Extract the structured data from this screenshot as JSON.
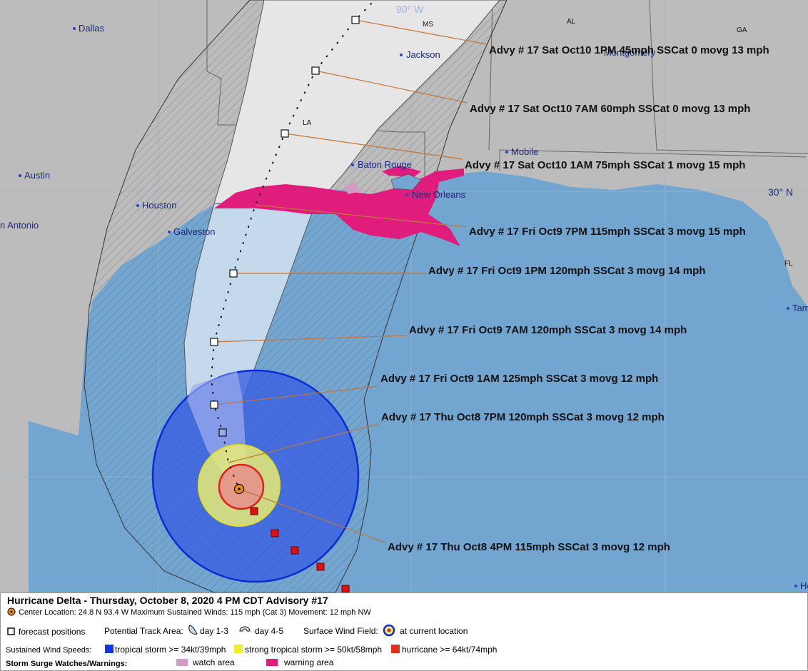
{
  "map": {
    "grid_labels": [
      "90° W",
      "30° N"
    ],
    "states": [
      "MS",
      "AL",
      "GA",
      "LA",
      "FL"
    ],
    "cities": [
      "Dallas",
      "Jackson",
      "Montgomery",
      "Mobile",
      "Baton Rouge",
      "New Orleans",
      "Austin",
      "Houston",
      "Galveston",
      "n Antonio",
      "Tam",
      "He"
    ]
  },
  "advisories": [
    "Advy # 17 Sat Oct10 1PM  45mph SSCat 0 movg 13 mph",
    "Advy # 17 Sat Oct10 7AM  60mph SSCat 0 movg 13 mph",
    "Advy # 17 Sat Oct10 1AM  75mph SSCat 1 movg 15 mph",
    "Advy # 17 Fri Oct9 7PM  115mph SSCat 3 movg 15 mph",
    "Advy # 17 Fri Oct9 1PM  120mph SSCat 3 movg 14 mph",
    "Advy # 17 Fri Oct9 7AM  120mph SSCat 3 movg 14 mph",
    "Advy # 17 Fri Oct9 1AM  125mph SSCat 3 movg 12 mph",
    "Advy # 17 Thu Oct8 7PM  120mph SSCat 3 movg 12 mph",
    "Advy # 17 Thu Oct8 4PM  115mph SSCat 3 movg 12 mph"
  ],
  "legend": {
    "title": "Hurricane Delta  -  Thursday, October 8, 2020  4 PM CDT   Advisory #17",
    "center": "Center Location: 24.8 N  93.4 W   Maximum Sustained Winds: 115 mph (Cat 3) Movement: 12 mph NW",
    "forecast_positions": "forecast positions",
    "potential_track_area": "Potential Track Area:",
    "day_1_3": "day 1-3",
    "day_4_5": "day 4-5",
    "surface_wind_field": "Surface Wind Field:",
    "current_location": "at current location",
    "sustained_wind_speeds": "Sustained Wind Speeds:",
    "tropical_storm": "tropical storm >= 34kt/39mph",
    "strong_tropical_storm": "strong tropical storm >= 50kt/58mph",
    "hurricane": "hurricane >= 64kt/74mph",
    "storm_surge": "Storm Surge Watches/Warnings:",
    "watch_area": "watch area",
    "warning_area": "warning area"
  }
}
